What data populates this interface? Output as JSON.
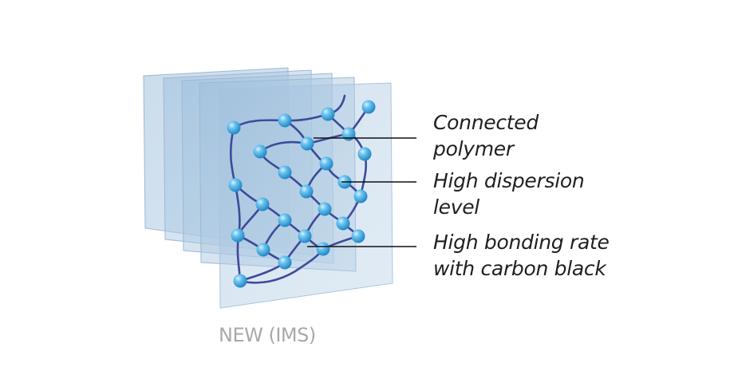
{
  "callouts": [
    {
      "line1": "Connected",
      "line2": "polymer"
    },
    {
      "line1": "High dispersion",
      "line2": "level"
    },
    {
      "line1": "High bonding rate",
      "line2": "with carbon black"
    }
  ],
  "caption": "NEW (IMS)",
  "colors": {
    "panel_fill": "#a9c6e0",
    "panel_edge": "#9bb9d6",
    "chain": "#3d4a9a",
    "node": "#3aa3dc",
    "leader_line": "#111111",
    "caption": "#a9a9a9"
  }
}
